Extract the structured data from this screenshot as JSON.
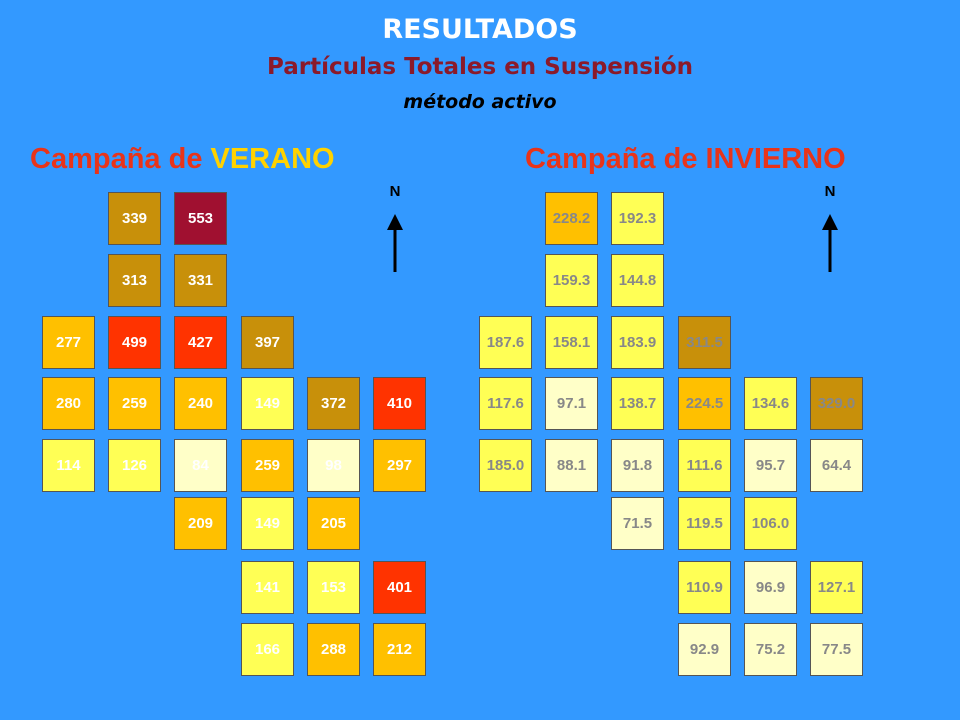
{
  "header": {
    "title": "RESULTADOS",
    "subtitle": "Partículas Totales en Suspensión",
    "method": "método activo"
  },
  "summer": {
    "label_prefix": "Campaña de ",
    "label_season": "VERANO",
    "north": "N",
    "cells": [
      {
        "value": "339",
        "color": "#c8900a"
      },
      {
        "value": "553",
        "color": "#a01030"
      },
      {
        "value": "313",
        "color": "#c8900a"
      },
      {
        "value": "331",
        "color": "#c8900a"
      },
      {
        "value": "277",
        "color": "#ffc000"
      },
      {
        "value": "499",
        "color": "#ff3300"
      },
      {
        "value": "427",
        "color": "#ff3300"
      },
      {
        "value": "397",
        "color": "#c8900a"
      },
      {
        "value": "280",
        "color": "#ffc000"
      },
      {
        "value": "259",
        "color": "#ffc000"
      },
      {
        "value": "240",
        "color": "#ffc000"
      },
      {
        "value": "149",
        "color": "#ffff55"
      },
      {
        "value": "372",
        "color": "#c8900a"
      },
      {
        "value": "410",
        "color": "#ff3300"
      },
      {
        "value": "114",
        "color": "#ffff55"
      },
      {
        "value": "126",
        "color": "#ffff55"
      },
      {
        "value": "84",
        "color": "#ffffc8"
      },
      {
        "value": "259",
        "color": "#ffc000"
      },
      {
        "value": "98",
        "color": "#ffffc8"
      },
      {
        "value": "297",
        "color": "#ffc000"
      },
      {
        "value": "209",
        "color": "#ffc000"
      },
      {
        "value": "149",
        "color": "#ffff55"
      },
      {
        "value": "205",
        "color": "#ffc000"
      },
      {
        "value": "141",
        "color": "#ffff55"
      },
      {
        "value": "153",
        "color": "#ffff55"
      },
      {
        "value": "401",
        "color": "#ff3300"
      },
      {
        "value": "166",
        "color": "#ffff55"
      },
      {
        "value": "288",
        "color": "#ffc000"
      },
      {
        "value": "212",
        "color": "#ffc000"
      }
    ]
  },
  "winter": {
    "label_prefix": "Campaña de ",
    "label_season": "INVIERNO",
    "north": "N",
    "cells": [
      {
        "value": "228.2",
        "color": "#ffc000"
      },
      {
        "value": "192.3",
        "color": "#ffff55"
      },
      {
        "value": "159.3",
        "color": "#ffff55"
      },
      {
        "value": "144.8",
        "color": "#ffff55"
      },
      {
        "value": "187.6",
        "color": "#ffff55"
      },
      {
        "value": "158.1",
        "color": "#ffff55"
      },
      {
        "value": "183.9",
        "color": "#ffff55"
      },
      {
        "value": "311.5",
        "color": "#c8900a"
      },
      {
        "value": "117.6",
        "color": "#ffff55"
      },
      {
        "value": "97.1",
        "color": "#ffffc8"
      },
      {
        "value": "138.7",
        "color": "#ffff55"
      },
      {
        "value": "224.5",
        "color": "#ffc000"
      },
      {
        "value": "134.6",
        "color": "#ffff55"
      },
      {
        "value": "329.0",
        "color": "#c8900a"
      },
      {
        "value": "185.0",
        "color": "#ffff55"
      },
      {
        "value": "88.1",
        "color": "#ffffc8"
      },
      {
        "value": "91.8",
        "color": "#ffffc8"
      },
      {
        "value": "111.6",
        "color": "#ffff55"
      },
      {
        "value": "95.7",
        "color": "#ffffc8"
      },
      {
        "value": "64.4",
        "color": "#ffffc8"
      },
      {
        "value": "71.5",
        "color": "#ffffc8"
      },
      {
        "value": "119.5",
        "color": "#ffff55"
      },
      {
        "value": "106.0",
        "color": "#ffff55"
      },
      {
        "value": "110.9",
        "color": "#ffff55"
      },
      {
        "value": "96.9",
        "color": "#ffffc8"
      },
      {
        "value": "127.1",
        "color": "#ffff55"
      },
      {
        "value": "92.9",
        "color": "#ffffc8"
      },
      {
        "value": "75.2",
        "color": "#ffffc8"
      },
      {
        "value": "77.5",
        "color": "#ffffc8"
      }
    ]
  }
}
